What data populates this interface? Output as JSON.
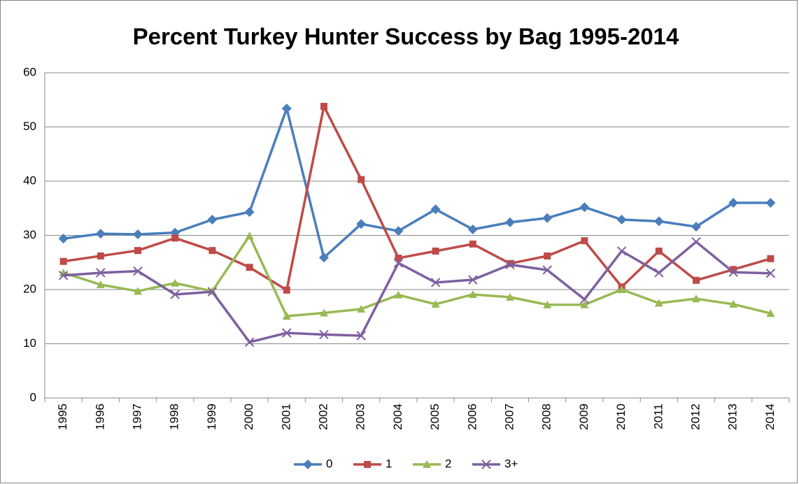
{
  "chart_data": {
    "type": "line",
    "title": "Percent Turkey Hunter Success by Bag 1995-2014",
    "categories": [
      "1995",
      "1996",
      "1997",
      "1998",
      "1999",
      "2000",
      "2001",
      "2002",
      "2003",
      "2004",
      "2005",
      "2006",
      "2007",
      "2008",
      "2009",
      "2010",
      "2011",
      "2012",
      "2013",
      "2014"
    ],
    "series": [
      {
        "name": "0",
        "color": "#4a7ebb",
        "marker": "diamond",
        "values": [
          29.4,
          30.3,
          30.2,
          30.5,
          32.9,
          34.3,
          53.4,
          25.9,
          32.1,
          30.8,
          34.8,
          31.1,
          32.4,
          33.2,
          35.2,
          32.9,
          32.6,
          31.6,
          36.0,
          36.0
        ]
      },
      {
        "name": "1",
        "color": "#be4b48",
        "marker": "square",
        "values": [
          25.2,
          26.2,
          27.2,
          29.5,
          27.2,
          24.1,
          19.9,
          53.8,
          40.3,
          25.8,
          27.1,
          28.4,
          24.8,
          26.2,
          29.0,
          20.5,
          27.1,
          21.7,
          23.7,
          25.7
        ]
      },
      {
        "name": "2",
        "color": "#98b954",
        "marker": "triangle",
        "values": [
          23.1,
          20.9,
          19.7,
          21.2,
          19.7,
          29.9,
          15.1,
          15.7,
          16.4,
          19.0,
          17.3,
          19.1,
          18.6,
          17.2,
          17.2,
          20.0,
          17.5,
          18.3,
          17.3,
          15.6
        ]
      },
      {
        "name": "3+",
        "color": "#7d60a0",
        "marker": "x",
        "values": [
          22.6,
          23.1,
          23.4,
          19.1,
          19.6,
          10.3,
          12.0,
          11.7,
          11.5,
          24.9,
          21.3,
          21.8,
          24.6,
          23.6,
          18.2,
          27.1,
          23.1,
          28.8,
          23.2,
          23.0
        ]
      }
    ],
    "ylim": [
      0,
      60
    ],
    "yticks": [
      0,
      10,
      20,
      30,
      40,
      50,
      60
    ],
    "grid": true,
    "legend": "bottom"
  }
}
